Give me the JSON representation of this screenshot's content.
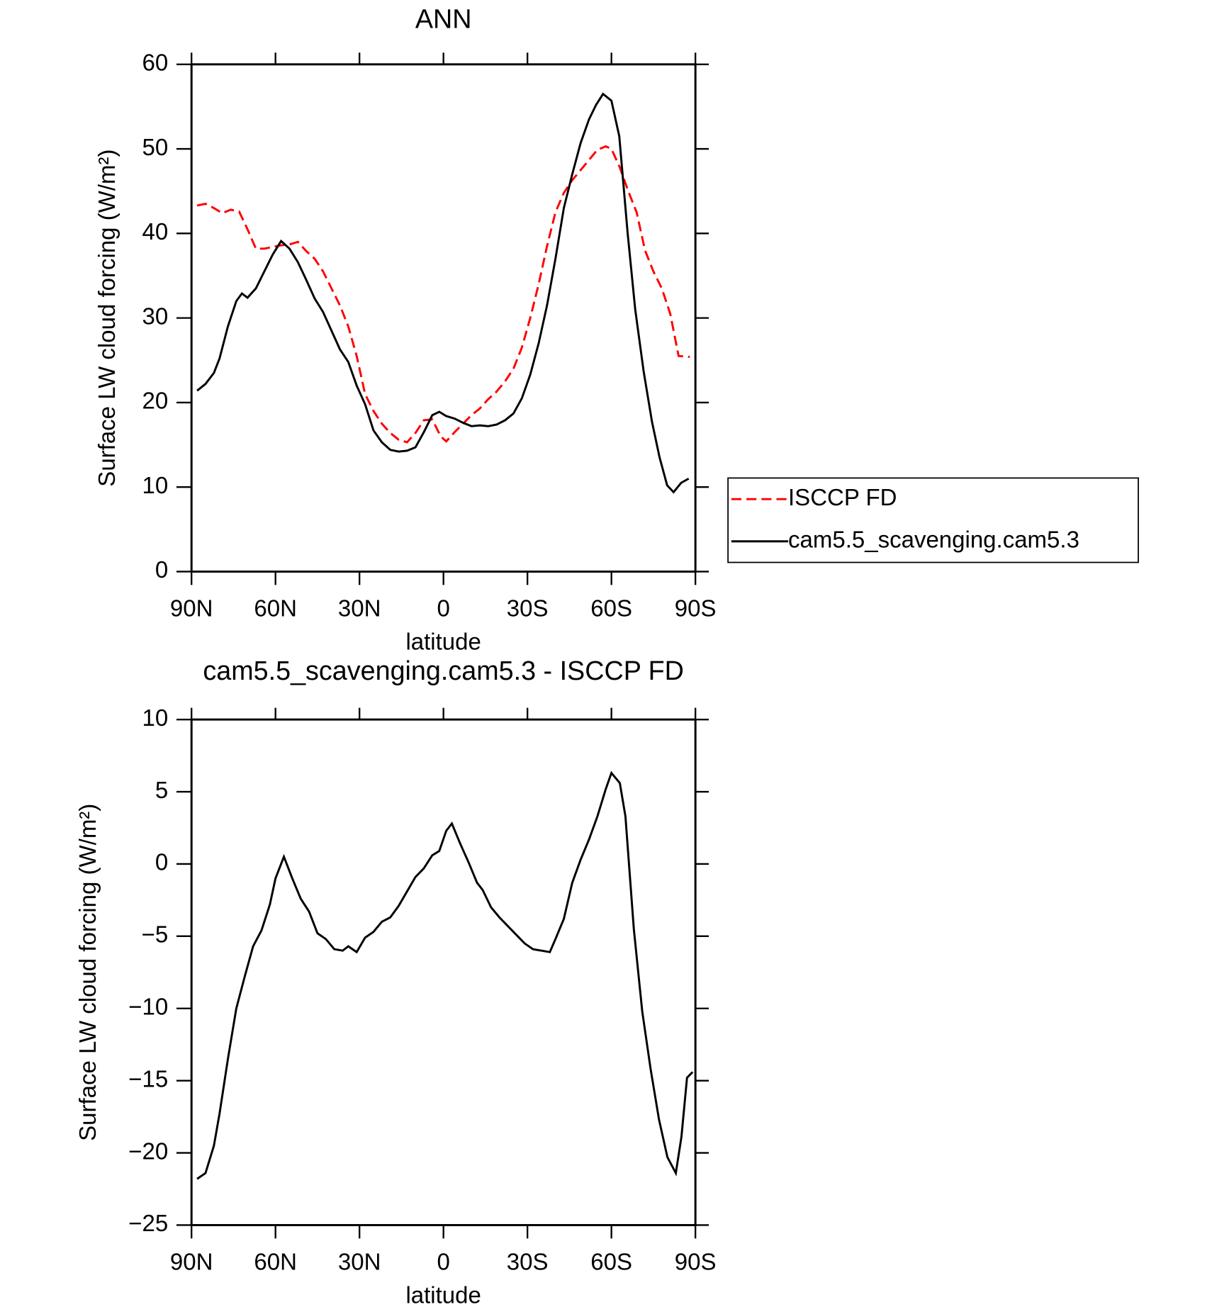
{
  "chart_data": [
    {
      "type": "line",
      "title": "ANN",
      "xlabel": "latitude",
      "ylabel": "Surface LW cloud forcing (W/m²)",
      "xlim": [
        90,
        -90
      ],
      "xticks": [
        {
          "value": 90,
          "label": "90N"
        },
        {
          "value": 60,
          "label": "60N"
        },
        {
          "value": 30,
          "label": "30N"
        },
        0,
        {
          "value": -30,
          "label": "30S"
        },
        {
          "value": -60,
          "label": "60S"
        },
        {
          "value": -90,
          "label": "90S"
        }
      ],
      "ylim": [
        0,
        60
      ],
      "yticks": [
        0,
        10,
        20,
        30,
        40,
        50,
        60
      ],
      "legend": "right",
      "series": [
        {
          "name": "ISCCP FD",
          "color": "#ff0000",
          "linestyle": "dashed",
          "x": [
            88,
            85,
            82,
            79,
            76,
            73,
            70,
            67,
            64,
            61,
            58,
            55,
            52,
            49,
            46,
            43,
            40,
            37,
            34,
            31,
            28,
            25,
            22,
            19,
            16,
            13,
            10,
            7,
            4,
            1,
            -1,
            -4,
            -7,
            -10,
            -13,
            -16,
            -19,
            -22,
            -25,
            -28,
            -31,
            -34,
            -37,
            -40,
            -43,
            -46,
            -49,
            -52,
            -55,
            -58,
            -60,
            -63,
            -66,
            -69,
            -72,
            -75,
            -78,
            -81,
            -84,
            -88
          ],
          "values": [
            43.3,
            43.5,
            43,
            42.4,
            42.8,
            42.6,
            40.5,
            38.2,
            38.2,
            38.4,
            38.6,
            38.7,
            39,
            37.9,
            37,
            35.5,
            33.5,
            31.5,
            29,
            25.5,
            21,
            19,
            17.5,
            16.4,
            15.6,
            15.3,
            16.4,
            17.9,
            18,
            16,
            15.4,
            16.5,
            17.5,
            18.5,
            19.3,
            20.4,
            21.3,
            22.5,
            24,
            26.5,
            30,
            34,
            38.5,
            42.5,
            44.8,
            46.3,
            47.5,
            48.7,
            49.9,
            50.3,
            50,
            47.8,
            45,
            42.5,
            38,
            35.5,
            33.5,
            30.5,
            25.5,
            25.4
          ]
        },
        {
          "name": "cam5.5_scavenging.cam5.3",
          "color": "#000000",
          "linestyle": "solid",
          "x": [
            88,
            85,
            82,
            80,
            77,
            74,
            72,
            70,
            67,
            64,
            61,
            58,
            55,
            52,
            49,
            46,
            43,
            40,
            37,
            34,
            31,
            28,
            25,
            22,
            19,
            16,
            13,
            10,
            7,
            4,
            1.5,
            -1,
            -4,
            -7,
            -10,
            -13,
            -16,
            -19,
            -22,
            -25,
            -28,
            -31,
            -34,
            -37,
            -40,
            -43,
            -46,
            -49,
            -52,
            -54.5,
            -57,
            -60,
            -62.8,
            -65.8,
            -68.5,
            -71.5,
            -74.5,
            -77.2,
            -79.9,
            -82.2,
            -84.9,
            -87.6
          ],
          "values": [
            21.4,
            22.2,
            23.5,
            25.2,
            29,
            32,
            32.9,
            32.4,
            33.5,
            35.5,
            37.5,
            39.1,
            38.2,
            36.6,
            34.5,
            32.3,
            30.7,
            28.5,
            26.3,
            24.8,
            22,
            19.8,
            16.7,
            15.3,
            14.4,
            14.2,
            14.3,
            14.7,
            16.5,
            18.5,
            18.9,
            18.4,
            18.1,
            17.6,
            17.2,
            17.3,
            17.2,
            17.4,
            17.9,
            18.7,
            20.5,
            23.3,
            27,
            31.5,
            37,
            43,
            47,
            50.7,
            53.5,
            55.2,
            56.5,
            55.7,
            51.5,
            40,
            31,
            23.7,
            17.7,
            13.5,
            10.2,
            9.4,
            10.5,
            11
          ]
        }
      ]
    },
    {
      "type": "line",
      "title": "cam5.5_scavenging.cam5.3 - ISCCP FD",
      "xlabel": "latitude",
      "ylabel": "Surface LW cloud forcing (W/m²)",
      "xlim": [
        90,
        -90
      ],
      "xticks": [
        {
          "value": 90,
          "label": "90N"
        },
        {
          "value": 60,
          "label": "60N"
        },
        {
          "value": 30,
          "label": "30N"
        },
        0,
        {
          "value": -30,
          "label": "30S"
        },
        {
          "value": -60,
          "label": "60S"
        },
        {
          "value": -90,
          "label": "90S"
        }
      ],
      "ylim": [
        -25,
        10
      ],
      "yticks": [
        {
          "value": -25,
          "label": "−25"
        },
        {
          "value": -20,
          "label": "−20"
        },
        {
          "value": -15,
          "label": "−15"
        },
        {
          "value": -10,
          "label": "−10"
        },
        {
          "value": -5,
          "label": "−5"
        },
        0,
        5,
        10
      ],
      "series": [
        {
          "color": "#000000",
          "linestyle": "solid",
          "x": [
            88,
            85,
            82,
            80,
            77,
            74,
            71,
            68,
            65,
            62,
            60,
            57,
            54,
            51,
            48,
            45,
            42,
            39,
            36,
            34,
            31,
            28,
            25,
            22,
            19,
            16,
            13,
            10,
            7,
            4,
            1.5,
            -1,
            -3,
            -6,
            -9,
            -12,
            -14,
            -17,
            -20,
            -23,
            -26,
            -29,
            -32,
            -35,
            -38,
            -40,
            -43,
            -46,
            -49,
            -52,
            -55,
            -58,
            -60,
            -63,
            -65,
            -68,
            -71,
            -74,
            -77,
            -80,
            -83,
            -85,
            -87,
            -89
          ],
          "values": [
            -21.8,
            -21.4,
            -19.5,
            -17.3,
            -13.5,
            -10,
            -7.8,
            -5.7,
            -4.6,
            -2.8,
            -1,
            0.5,
            -1,
            -2.4,
            -3.3,
            -4.8,
            -5.2,
            -5.9,
            -6,
            -5.7,
            -6.1,
            -5.1,
            -4.7,
            -4,
            -3.7,
            -2.9,
            -1.9,
            -0.9,
            -0.3,
            0.6,
            0.9,
            2.3,
            2.8,
            1.4,
            0.1,
            -1.3,
            -1.8,
            -3,
            -3.7,
            -4.3,
            -4.9,
            -5.5,
            -5.9,
            -6,
            -6.1,
            -5.2,
            -3.8,
            -1.3,
            0.3,
            1.7,
            3.3,
            5.2,
            6.3,
            5.6,
            3.3,
            -4.5,
            -10.2,
            -14.2,
            -17.7,
            -20.3,
            -21.4,
            -18.9,
            -14.8,
            -14.4
          ]
        }
      ]
    }
  ]
}
